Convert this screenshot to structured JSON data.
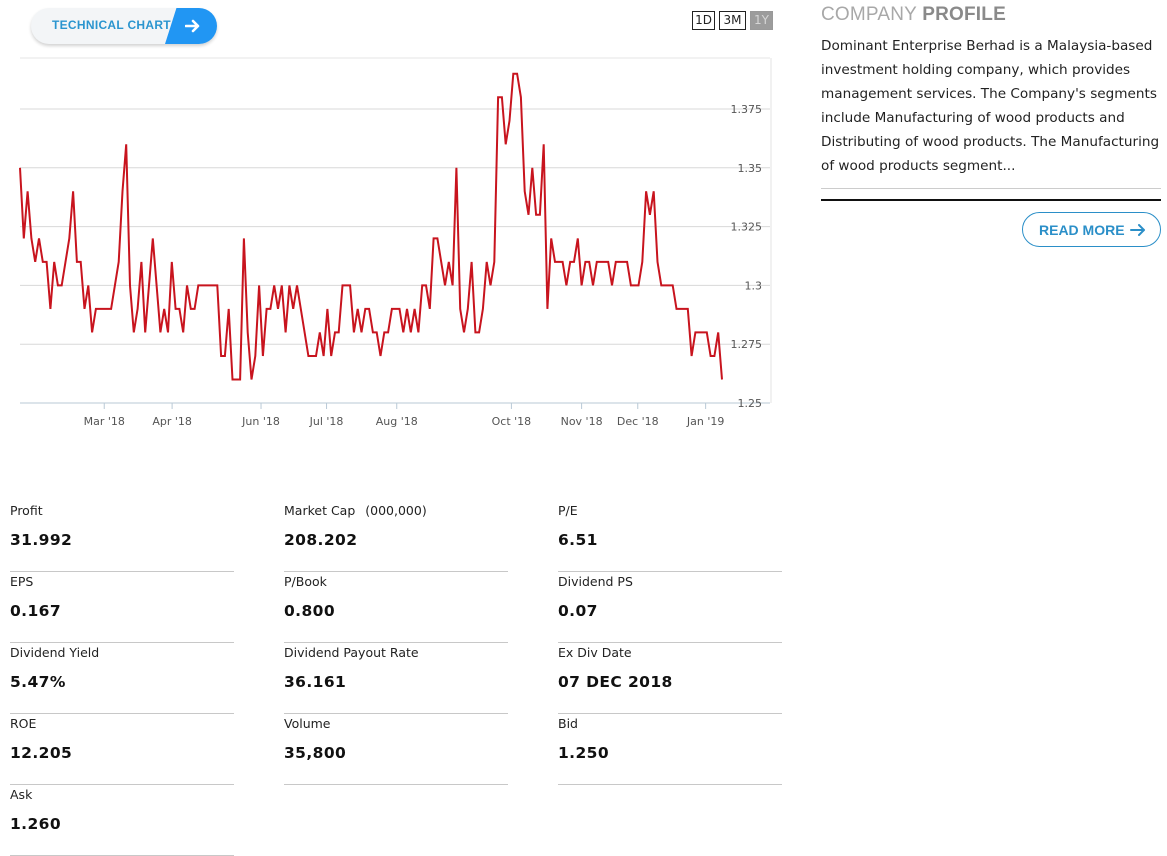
{
  "technical_chart": {
    "label": "TECHNICAL CHART"
  },
  "ranges": {
    "d1": "1D",
    "m3": "3M",
    "y1": "1Y",
    "active": "1Y"
  },
  "colors": {
    "accent": "#2196f3",
    "line": "#c8141e",
    "grid": "#d8d8d8"
  },
  "chart_data": {
    "type": "line",
    "title": "",
    "xlabel": "",
    "ylabel": "",
    "ylim": [
      1.25,
      1.39
    ],
    "yticks": [
      "1.25",
      "1.275",
      "1.3",
      "1.325",
      "1.35",
      "1.375"
    ],
    "xticks": [
      {
        "label": "Mar '18",
        "x": 36
      },
      {
        "label": "Apr '18",
        "x": 65
      },
      {
        "label": "Jun '18",
        "x": 103
      },
      {
        "label": "Jul '18",
        "x": 131
      },
      {
        "label": "Aug '18",
        "x": 161
      },
      {
        "label": "Oct '18",
        "x": 210
      },
      {
        "label": "Nov '18",
        "x": 240
      },
      {
        "label": "Dec '18",
        "x": 264
      },
      {
        "label": "Jan '19",
        "x": 293
      }
    ],
    "x_domain": [
      0,
      300
    ],
    "series": [
      {
        "name": "Price",
        "points": [
          [
            0,
            1.35
          ],
          [
            1,
            1.32
          ],
          [
            2,
            1.34
          ],
          [
            3,
            1.32
          ],
          [
            4,
            1.31
          ],
          [
            5,
            1.32
          ],
          [
            6,
            1.31
          ],
          [
            7,
            1.31
          ],
          [
            8,
            1.29
          ],
          [
            9,
            1.31
          ],
          [
            10,
            1.3
          ],
          [
            11,
            1.3
          ],
          [
            12,
            1.31
          ],
          [
            13,
            1.32
          ],
          [
            14,
            1.34
          ],
          [
            15,
            1.31
          ],
          [
            16,
            1.31
          ],
          [
            17,
            1.29
          ],
          [
            18,
            1.3
          ],
          [
            19,
            1.28
          ],
          [
            20,
            1.29
          ],
          [
            22,
            1.29
          ],
          [
            24,
            1.29
          ],
          [
            25,
            1.3
          ],
          [
            26,
            1.31
          ],
          [
            27,
            1.34
          ],
          [
            28,
            1.36
          ],
          [
            29,
            1.3
          ],
          [
            30,
            1.28
          ],
          [
            31,
            1.29
          ],
          [
            32,
            1.31
          ],
          [
            33,
            1.28
          ],
          [
            34,
            1.3
          ],
          [
            35,
            1.32
          ],
          [
            36,
            1.3
          ],
          [
            37,
            1.28
          ],
          [
            38,
            1.29
          ],
          [
            39,
            1.28
          ],
          [
            40,
            1.31
          ],
          [
            41,
            1.29
          ],
          [
            42,
            1.29
          ],
          [
            43,
            1.28
          ],
          [
            44,
            1.3
          ],
          [
            45,
            1.29
          ],
          [
            46,
            1.29
          ],
          [
            47,
            1.3
          ],
          [
            48,
            1.3
          ],
          [
            50,
            1.3
          ],
          [
            52,
            1.3
          ],
          [
            53,
            1.27
          ],
          [
            54,
            1.27
          ],
          [
            55,
            1.29
          ],
          [
            56,
            1.26
          ],
          [
            57,
            1.26
          ],
          [
            58,
            1.26
          ],
          [
            59,
            1.32
          ],
          [
            60,
            1.28
          ],
          [
            61,
            1.26
          ],
          [
            62,
            1.27
          ],
          [
            63,
            1.3
          ],
          [
            64,
            1.27
          ],
          [
            65,
            1.29
          ],
          [
            66,
            1.29
          ],
          [
            67,
            1.3
          ],
          [
            68,
            1.29
          ],
          [
            69,
            1.3
          ],
          [
            70,
            1.28
          ],
          [
            71,
            1.3
          ],
          [
            72,
            1.29
          ],
          [
            73,
            1.3
          ],
          [
            74,
            1.29
          ],
          [
            75,
            1.28
          ],
          [
            76,
            1.27
          ],
          [
            77,
            1.27
          ],
          [
            78,
            1.27
          ],
          [
            79,
            1.28
          ],
          [
            80,
            1.27
          ],
          [
            81,
            1.29
          ],
          [
            82,
            1.27
          ],
          [
            83,
            1.28
          ],
          [
            84,
            1.28
          ],
          [
            85,
            1.3
          ],
          [
            86,
            1.3
          ],
          [
            87,
            1.3
          ],
          [
            88,
            1.28
          ],
          [
            89,
            1.29
          ],
          [
            90,
            1.28
          ],
          [
            91,
            1.29
          ],
          [
            92,
            1.29
          ],
          [
            93,
            1.28
          ],
          [
            94,
            1.28
          ],
          [
            95,
            1.27
          ],
          [
            96,
            1.28
          ],
          [
            97,
            1.28
          ],
          [
            98,
            1.29
          ],
          [
            99,
            1.29
          ],
          [
            100,
            1.29
          ],
          [
            101,
            1.28
          ],
          [
            102,
            1.29
          ],
          [
            103,
            1.28
          ],
          [
            104,
            1.29
          ],
          [
            105,
            1.28
          ],
          [
            106,
            1.3
          ],
          [
            107,
            1.3
          ],
          [
            108,
            1.29
          ],
          [
            109,
            1.32
          ],
          [
            110,
            1.32
          ],
          [
            111,
            1.31
          ],
          [
            112,
            1.3
          ],
          [
            113,
            1.31
          ],
          [
            114,
            1.3
          ],
          [
            115,
            1.35
          ],
          [
            116,
            1.29
          ],
          [
            117,
            1.28
          ],
          [
            118,
            1.29
          ],
          [
            119,
            1.31
          ],
          [
            120,
            1.28
          ],
          [
            121,
            1.28
          ],
          [
            122,
            1.29
          ],
          [
            123,
            1.31
          ],
          [
            124,
            1.3
          ],
          [
            125,
            1.31
          ],
          [
            126,
            1.38
          ],
          [
            127,
            1.38
          ],
          [
            128,
            1.36
          ],
          [
            129,
            1.37
          ],
          [
            130,
            1.39
          ],
          [
            131,
            1.39
          ],
          [
            132,
            1.38
          ],
          [
            133,
            1.34
          ],
          [
            134,
            1.33
          ],
          [
            135,
            1.35
          ],
          [
            136,
            1.33
          ],
          [
            137,
            1.33
          ],
          [
            138,
            1.36
          ],
          [
            139,
            1.29
          ],
          [
            140,
            1.32
          ],
          [
            141,
            1.31
          ],
          [
            142,
            1.31
          ],
          [
            143,
            1.31
          ],
          [
            144,
            1.3
          ],
          [
            145,
            1.31
          ],
          [
            146,
            1.31
          ],
          [
            147,
            1.32
          ],
          [
            148,
            1.3
          ],
          [
            149,
            1.31
          ],
          [
            150,
            1.31
          ],
          [
            151,
            1.3
          ],
          [
            152,
            1.31
          ],
          [
            153,
            1.31
          ],
          [
            154,
            1.31
          ],
          [
            155,
            1.31
          ],
          [
            156,
            1.3
          ],
          [
            157,
            1.31
          ],
          [
            158,
            1.31
          ],
          [
            159,
            1.31
          ],
          [
            160,
            1.31
          ],
          [
            161,
            1.3
          ],
          [
            162,
            1.3
          ],
          [
            163,
            1.3
          ],
          [
            164,
            1.31
          ],
          [
            165,
            1.34
          ],
          [
            166,
            1.33
          ],
          [
            167,
            1.34
          ],
          [
            168,
            1.31
          ],
          [
            169,
            1.3
          ],
          [
            170,
            1.3
          ],
          [
            171,
            1.3
          ],
          [
            172,
            1.3
          ],
          [
            173,
            1.29
          ],
          [
            174,
            1.29
          ],
          [
            175,
            1.29
          ],
          [
            176,
            1.29
          ],
          [
            177,
            1.27
          ],
          [
            178,
            1.28
          ],
          [
            179,
            1.28
          ],
          [
            180,
            1.28
          ],
          [
            181,
            1.28
          ],
          [
            182,
            1.27
          ],
          [
            183,
            1.27
          ],
          [
            184,
            1.28
          ],
          [
            185,
            1.26
          ]
        ]
      }
    ]
  },
  "profile": {
    "title_light": "COMPANY",
    "title_bold": "PROFILE",
    "text": "Dominant Enterprise Berhad is a Malaysia-based investment holding company, which provides management services. The Company's segments include Manufacturing of wood products and Distributing of wood products. The Manufacturing of wood products segment...",
    "read_more": "READ MORE"
  },
  "stats": [
    {
      "key": "Profit",
      "value": "31.992"
    },
    {
      "key": "Market Cap",
      "unit": "(000,000)",
      "value": "208.202"
    },
    {
      "key": "P/E",
      "value": "6.51"
    },
    {
      "key": "EPS",
      "value": "0.167"
    },
    {
      "key": "P/Book",
      "value": "0.800"
    },
    {
      "key": "Dividend PS",
      "value": "0.07"
    },
    {
      "key": "Dividend Yield",
      "value": "5.47%"
    },
    {
      "key": "Dividend Payout Rate",
      "value": "36.161"
    },
    {
      "key": "Ex Div Date",
      "value": "07 DEC 2018"
    },
    {
      "key": "ROE",
      "value": "12.205"
    },
    {
      "key": "Volume",
      "value": "35,800"
    },
    {
      "key": "Bid",
      "value": "1.250"
    },
    {
      "key": "Ask",
      "value": "1.260"
    }
  ]
}
